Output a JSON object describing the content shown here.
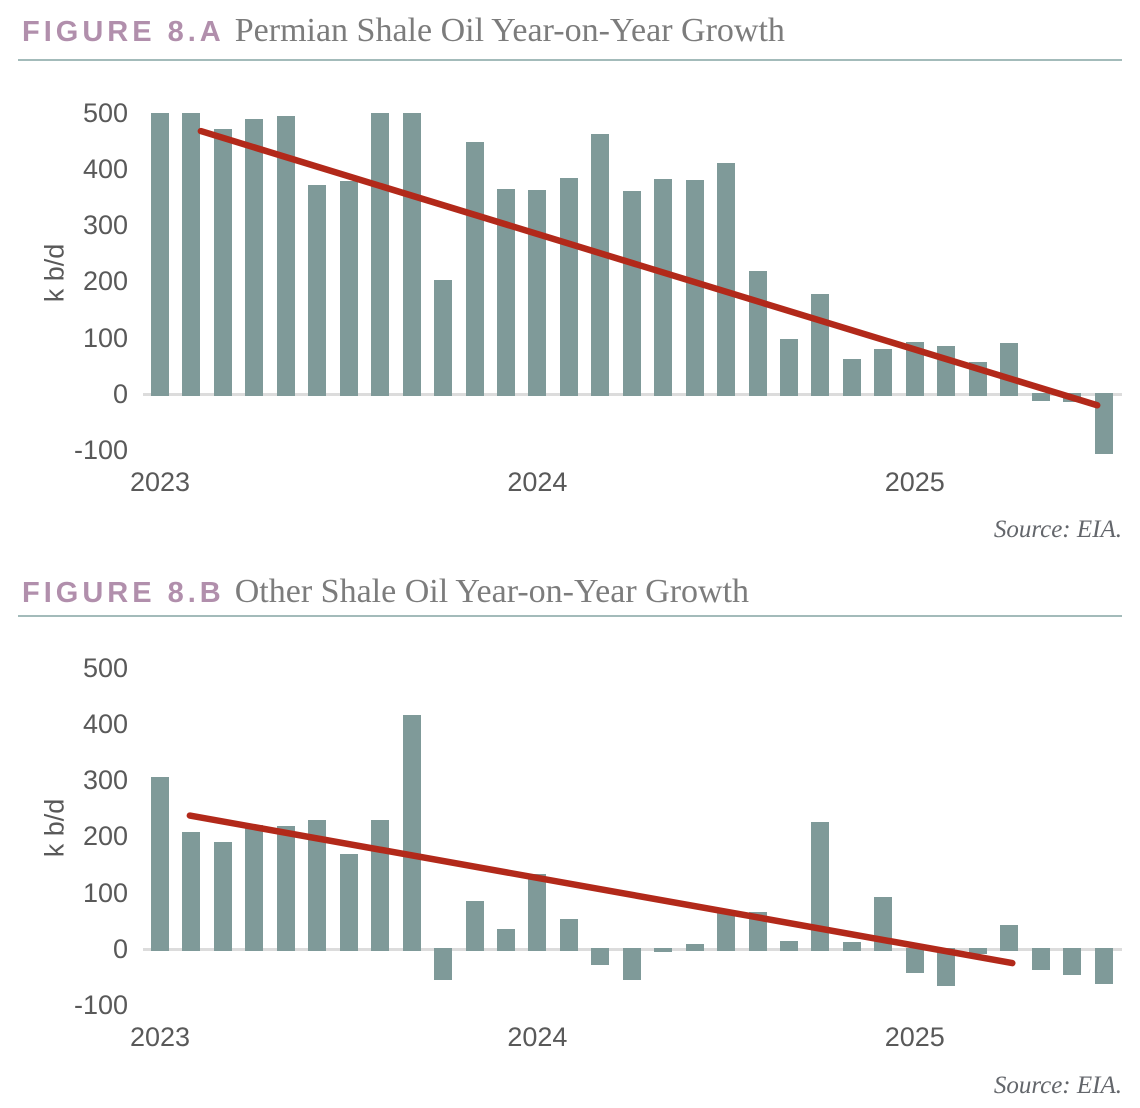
{
  "figures": [
    {
      "label": "FIGURE 8.A",
      "title": "Permian Shale Oil Year-on-Year Growth",
      "source": "Source: EIA."
    },
    {
      "label": "FIGURE 8.B",
      "title": "Other Shale Oil Year-on-Year Growth",
      "source": "Source: EIA."
    }
  ],
  "colors": {
    "figure_label": "#b18fac",
    "figure_title": "#7c7c7c",
    "title_rule": "#a3bbba",
    "axis_text": "#595959",
    "bar": "#7f9a99",
    "trend": "#b2291a",
    "zero_line": "#dcdcdc",
    "source_text": "#63666b"
  },
  "chart_data": [
    {
      "type": "bar",
      "title": "Permian Shale Oil Year-on-Year Growth",
      "xlabel": "",
      "ylabel": "k b/d",
      "ylim": [
        -100,
        500
      ],
      "yticks": [
        500,
        400,
        300,
        200,
        100,
        0,
        -100
      ],
      "grid": "zero-line-only",
      "legend": "none",
      "x_year_labels": [
        {
          "label": "2023",
          "index": 0
        },
        {
          "label": "2024",
          "index": 12
        },
        {
          "label": "2025",
          "index": 24
        }
      ],
      "categories": [
        "2023-01",
        "2023-02",
        "2023-03",
        "2023-04",
        "2023-05",
        "2023-06",
        "2023-07",
        "2023-08",
        "2023-09",
        "2023-10",
        "2023-11",
        "2023-12",
        "2024-01",
        "2024-02",
        "2024-03",
        "2024-04",
        "2024-05",
        "2024-06",
        "2024-07",
        "2024-08",
        "2024-09",
        "2024-10",
        "2024-11",
        "2024-12",
        "2025-01",
        "2025-02",
        "2025-03",
        "2025-04",
        "2025-05",
        "2025-06",
        "2025-07"
      ],
      "values": [
        500,
        500,
        470,
        489,
        493,
        372,
        378,
        500,
        500,
        202,
        448,
        365,
        362,
        383,
        462,
        360,
        382,
        380,
        410,
        218,
        97,
        178,
        63,
        80,
        92,
        85,
        57,
        90,
        -13,
        -15,
        -107
      ],
      "trendline": {
        "start_index": 1.3,
        "start_value": 467,
        "end_index": 29.8,
        "end_value": -20
      }
    },
    {
      "type": "bar",
      "title": "Other Shale Oil Year-on-Year Growth",
      "xlabel": "",
      "ylabel": "k b/d",
      "ylim": [
        -100,
        500
      ],
      "yticks": [
        500,
        400,
        300,
        200,
        100,
        0,
        -100
      ],
      "grid": "zero-line-only",
      "legend": "none",
      "x_year_labels": [
        {
          "label": "2023",
          "index": 0
        },
        {
          "label": "2024",
          "index": 12
        },
        {
          "label": "2025",
          "index": 24
        }
      ],
      "categories": [
        "2023-01",
        "2023-02",
        "2023-03",
        "2023-04",
        "2023-05",
        "2023-06",
        "2023-07",
        "2023-08",
        "2023-09",
        "2023-10",
        "2023-11",
        "2023-12",
        "2024-01",
        "2024-02",
        "2024-03",
        "2024-04",
        "2024-05",
        "2024-06",
        "2024-07",
        "2024-08",
        "2024-09",
        "2024-10",
        "2024-11",
        "2024-12",
        "2025-01",
        "2025-02",
        "2025-03",
        "2025-04",
        "2025-05",
        "2025-06",
        "2025-07"
      ],
      "values": [
        305,
        207,
        190,
        220,
        218,
        230,
        168,
        230,
        415,
        -55,
        85,
        35,
        133,
        53,
        -28,
        -55,
        -5,
        8,
        68,
        66,
        15,
        225,
        12,
        93,
        -42,
        -65,
        -8,
        42,
        -38,
        -47,
        -63
      ],
      "trendline": {
        "start_index": 0.95,
        "start_value": 237,
        "end_index": 27.1,
        "end_value": -25
      }
    }
  ]
}
